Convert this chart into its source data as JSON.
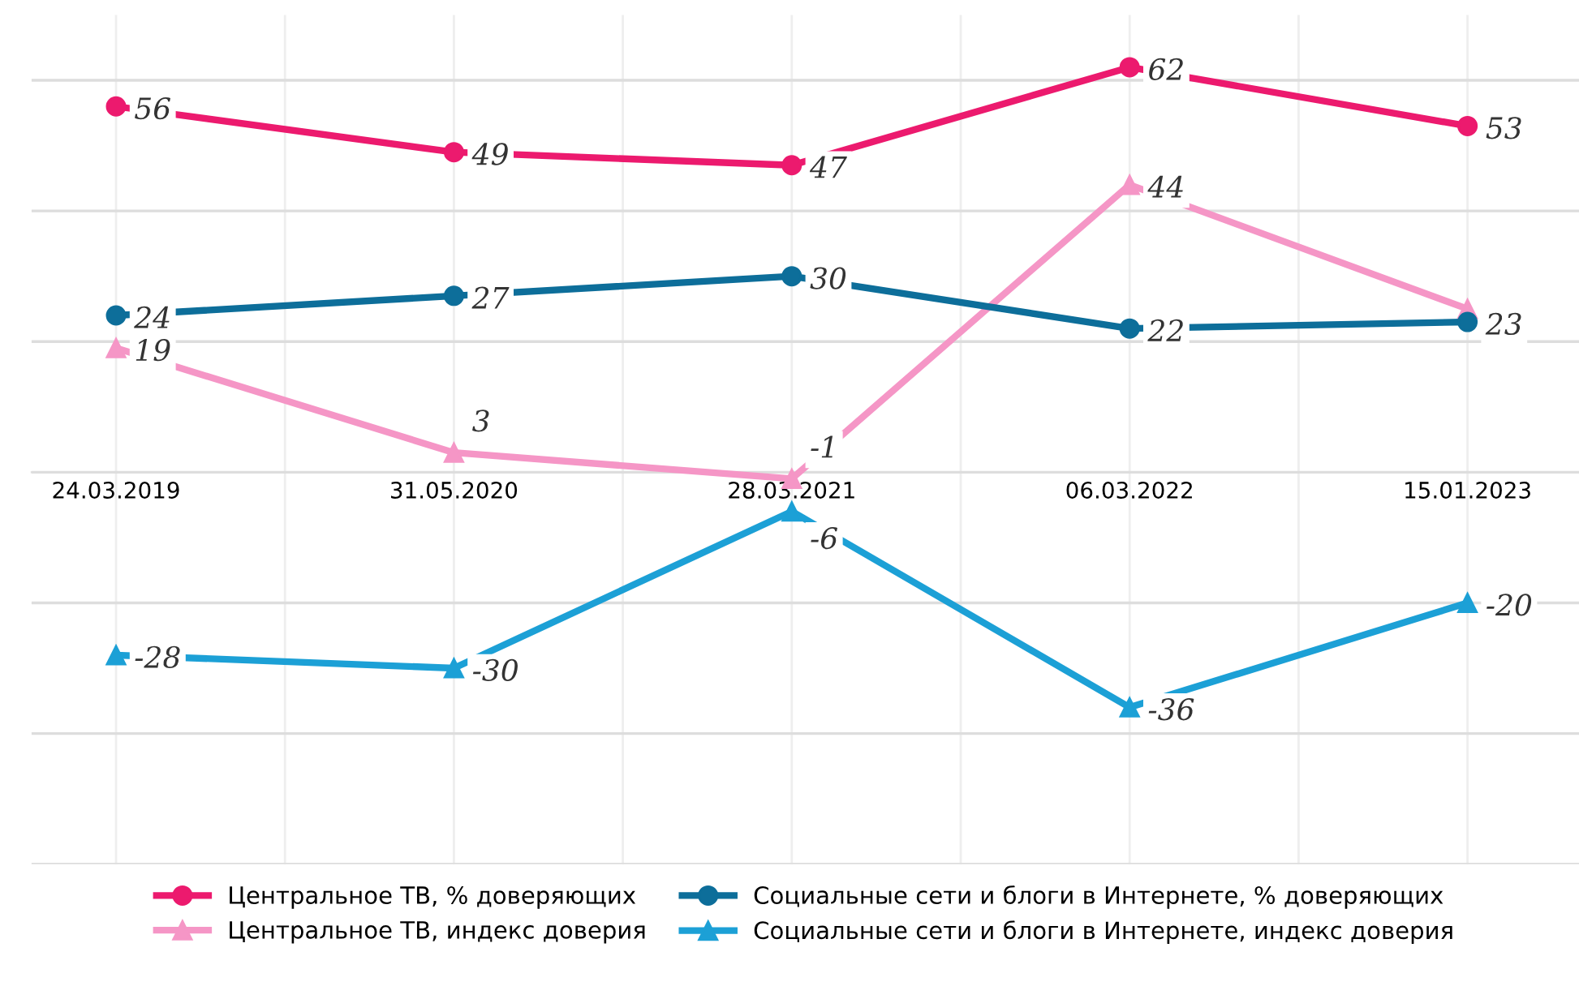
{
  "chart_data": {
    "type": "line",
    "categories": [
      "24.03.2019",
      "31.05.2020",
      "28.03.2021",
      "06.03.2022",
      "15.01.2023"
    ],
    "series": [
      {
        "name": "Центральное ТВ, % доверяющих",
        "color": "#ec1a6e",
        "marker": "circle",
        "values": [
          56,
          49,
          47,
          62,
          53
        ],
        "value_labels": [
          "56",
          "49",
          "47",
          "62",
          "53"
        ]
      },
      {
        "name": "Центральное ТВ, индекс доверия",
        "color": "#f596c6",
        "marker": "triangle",
        "values": [
          19,
          3,
          -1,
          44,
          25
        ],
        "value_labels": [
          "19",
          "3",
          "-1",
          "44",
          null
        ]
      },
      {
        "name": "Социальные сети и блоги в Интернете, % доверяющих",
        "color": "#0d6e9a",
        "marker": "circle",
        "values": [
          24,
          27,
          30,
          22,
          23
        ],
        "value_labels": [
          "24",
          "27",
          "30",
          "22",
          "23"
        ]
      },
      {
        "name": "Социальные сети и блоги в Интернете, индекс доверия",
        "color": "#1ca0d6",
        "marker": "triangle",
        "values": [
          -28,
          -30,
          -6,
          -36,
          -20
        ],
        "value_labels": [
          "-28",
          "-30",
          "-6",
          "-36",
          "-20"
        ]
      }
    ],
    "ylim": [
      -60,
      70
    ],
    "yticks": [
      {
        "value": -60,
        "label": null
      },
      {
        "value": -40,
        "label": null
      },
      {
        "value": -20,
        "label": null
      },
      {
        "value": 0,
        "label": null
      },
      {
        "value": 20,
        "label": null
      },
      {
        "value": 40,
        "label": null
      },
      {
        "value": 60,
        "label": null
      }
    ],
    "tick_labels": "x",
    "grid": true,
    "legend": "bottom",
    "line_style": "solid"
  }
}
